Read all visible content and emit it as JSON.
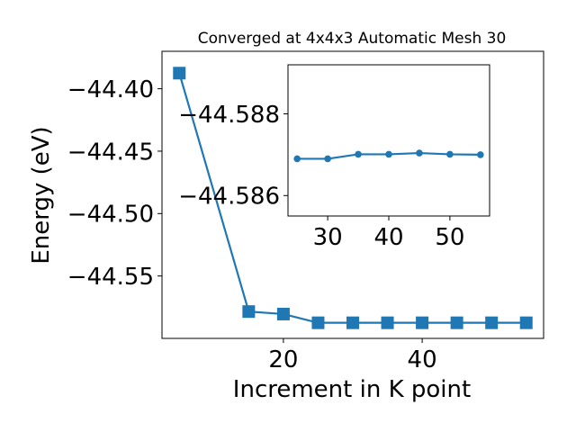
{
  "chart_data": [
    {
      "type": "line",
      "title": "Converged at 4x4x3 Automatic Mesh 30",
      "xlabel": "Increment in K point",
      "ylabel": "Energy (eV)",
      "x": [
        5,
        15,
        20,
        25,
        30,
        35,
        40,
        45,
        50,
        55
      ],
      "series": [
        {
          "values": [
            -44.3875,
            -44.5785,
            -44.5805,
            -44.5875,
            -44.5875,
            -44.5875,
            -44.5875,
            -44.5875,
            -44.5875,
            -44.5875
          ],
          "color": "#1f77b4",
          "marker": "square"
        }
      ],
      "xlim": [
        2.5,
        57.5
      ],
      "ylim": [
        -44.6,
        -44.37
      ],
      "xticks": [
        20,
        40
      ],
      "xtick_labels": [
        "20",
        "40"
      ],
      "yticks": [
        -44.4,
        -44.45,
        -44.5,
        -44.55
      ],
      "ytick_labels": [
        "−44.40",
        "−44.45",
        "−44.50",
        "−44.55"
      ],
      "grid": false,
      "legend": "none"
    },
    {
      "type": "line",
      "role": "inset",
      "x": [
        25,
        30,
        35,
        40,
        45,
        50,
        55
      ],
      "series": [
        {
          "values": [
            -44.5869,
            -44.5869,
            -44.58701,
            -44.58701,
            -44.58704,
            -44.58701,
            -44.587
          ],
          "color": "#1f77b4",
          "marker": "circle"
        }
      ],
      "xlim": [
        23.5,
        56.5
      ],
      "ylim": [
        -44.5855,
        -44.5892
      ],
      "yaxis_inverted": true,
      "xticks": [
        30,
        40,
        50
      ],
      "xtick_labels": [
        "30",
        "40",
        "50"
      ],
      "yticks": [
        -44.588,
        -44.586
      ],
      "ytick_labels": [
        "−44.588",
        "−44.586"
      ],
      "grid": false,
      "legend": "none"
    }
  ]
}
